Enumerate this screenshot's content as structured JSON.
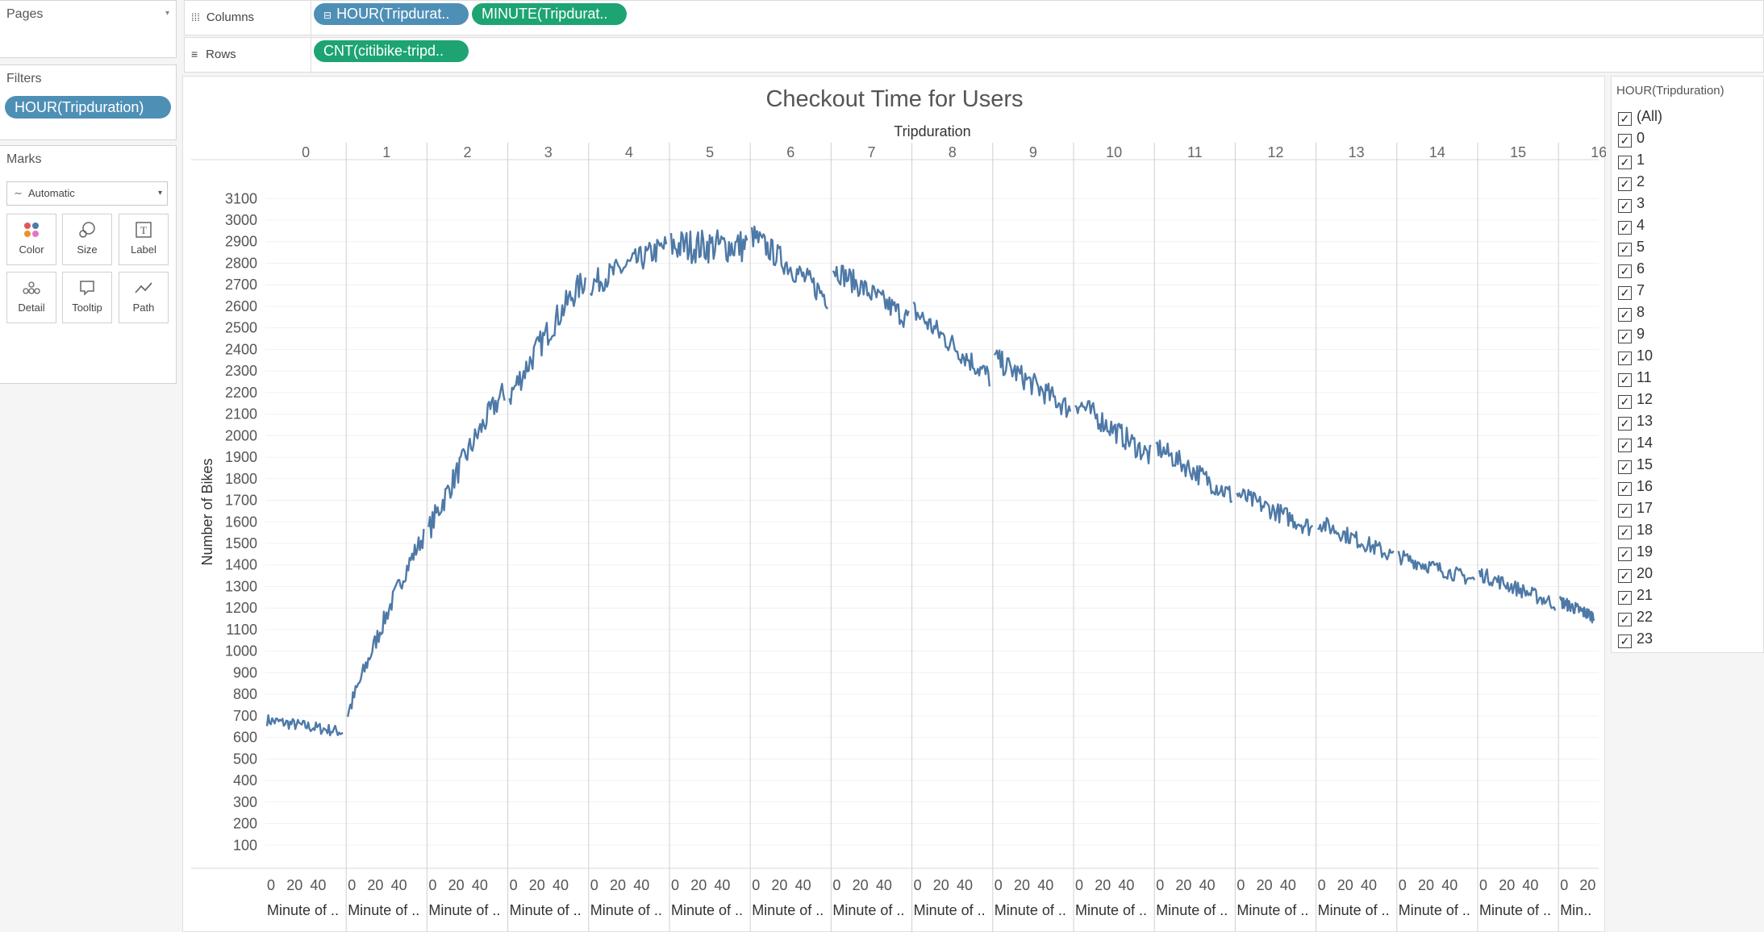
{
  "sidebar": {
    "pages_title": "Pages",
    "filters_title": "Filters",
    "filter_pill": "HOUR(Tripduration)",
    "marks_title": "Marks",
    "marks_type": "Automatic",
    "mark_buttons": [
      {
        "label": "Color",
        "icon": "color-icon"
      },
      {
        "label": "Size",
        "icon": "size-icon"
      },
      {
        "label": "Label",
        "icon": "label-icon"
      },
      {
        "label": "Detail",
        "icon": "detail-icon"
      },
      {
        "label": "Tooltip",
        "icon": "tooltip-icon"
      },
      {
        "label": "Path",
        "icon": "path-icon"
      }
    ]
  },
  "shelves": {
    "columns_label": "Columns",
    "rows_label": "Rows",
    "columns_pills": [
      "HOUR(Tripdurat..",
      "MINUTE(Tripdurat.."
    ],
    "rows_pills": [
      "CNT(citibike-tripd.."
    ]
  },
  "hour_filter": {
    "title": "HOUR(Tripduration)",
    "items": [
      "(All)",
      "0",
      "1",
      "2",
      "3",
      "4",
      "5",
      "6",
      "7",
      "8",
      "9",
      "10",
      "11",
      "12",
      "13",
      "14",
      "15",
      "16",
      "17",
      "18",
      "19",
      "20",
      "21",
      "22",
      "23"
    ]
  },
  "colors": {
    "line": "#4e79a7",
    "pill_blue": "#4e8fb6",
    "pill_green": "#1da472"
  },
  "chart_data": {
    "type": "line",
    "title": "Checkout Time for Users",
    "column_header": "Tripduration",
    "ylabel": "Number of Bikes",
    "ylim": [
      0,
      3100
    ],
    "yticks": [
      100,
      200,
      300,
      400,
      500,
      600,
      700,
      800,
      900,
      1000,
      1100,
      1200,
      1300,
      1400,
      1500,
      1600,
      1700,
      1800,
      1900,
      2000,
      2100,
      2200,
      2300,
      2400,
      2500,
      2600,
      2700,
      2800,
      2900,
      3000,
      3100
    ],
    "panels": [
      "0",
      "1",
      "2",
      "3",
      "4",
      "5",
      "6",
      "7",
      "8",
      "9",
      "10",
      "11",
      "12",
      "13",
      "14",
      "15",
      "16"
    ],
    "panel_xticks": [
      "0",
      "20",
      "40"
    ],
    "last_panel_xticks": [
      "0",
      "20"
    ],
    "xlabel": "Minute of ..",
    "last_xlabel": "Min..",
    "x_range_minutes": [
      0,
      59
    ],
    "series": [
      {
        "panel": "0",
        "start": 680,
        "end": 625,
        "noise": 28
      },
      {
        "panel": "1",
        "start": 710,
        "end": 1530,
        "noise": 45
      },
      {
        "panel": "2",
        "start": 1560,
        "end": 2200,
        "noise": 60
      },
      {
        "panel": "3",
        "start": 2180,
        "end": 2720,
        "noise": 65
      },
      {
        "panel": "4",
        "start": 2700,
        "end": 2880,
        "noise": 60
      },
      {
        "panel": "5",
        "start": 2880,
        "end": 2880,
        "noise": 80
      },
      {
        "panel": "6",
        "start": 2930,
        "end": 2640,
        "noise": 60
      },
      {
        "panel": "7",
        "start": 2780,
        "end": 2540,
        "noise": 55
      },
      {
        "panel": "8",
        "start": 2580,
        "end": 2270,
        "noise": 55
      },
      {
        "panel": "9",
        "start": 2360,
        "end": 2120,
        "noise": 55
      },
      {
        "panel": "10",
        "start": 2160,
        "end": 1900,
        "noise": 55
      },
      {
        "panel": "11",
        "start": 1950,
        "end": 1720,
        "noise": 50
      },
      {
        "panel": "12",
        "start": 1730,
        "end": 1570,
        "noise": 45
      },
      {
        "panel": "13",
        "start": 1600,
        "end": 1440,
        "noise": 40
      },
      {
        "panel": "14",
        "start": 1440,
        "end": 1330,
        "noise": 35
      },
      {
        "panel": "15",
        "start": 1360,
        "end": 1220,
        "noise": 35
      },
      {
        "panel": "16",
        "start": 1230,
        "end": 1160,
        "noise": 30
      }
    ]
  }
}
